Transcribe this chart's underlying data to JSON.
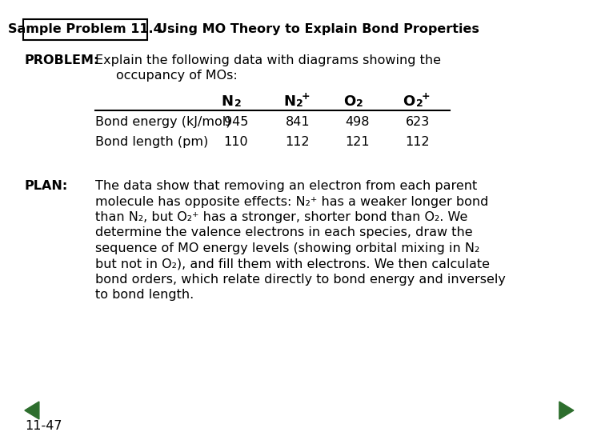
{
  "title_box": "Sample Problem 11.4",
  "title_right": "Using MO Theory to Explain Bond Properties",
  "problem_label": "PROBLEM:",
  "problem_text_line1": "Explain the following data with diagrams showing the",
  "problem_text_line2": "occupancy of MOs:",
  "table_row1_label": "Bond energy (kJ/mol)",
  "table_row1_values": [
    "945",
    "841",
    "498",
    "623"
  ],
  "table_row2_label": "Bond length (pm)",
  "table_row2_values": [
    "110",
    "112",
    "121",
    "112"
  ],
  "plan_label": "PLAN:",
  "plan_lines": [
    "The data show that removing an electron from each parent",
    "molecule has opposite effects: N₂⁺ has a weaker longer bond",
    "than N₂, but O₂⁺ has a stronger, shorter bond than O₂. We",
    "determine the valence electrons in each species, draw the",
    "sequence of MO energy levels (showing orbital mixing in N₂",
    "but not in O₂), and fill them with electrons. We then calculate",
    "bond orders, which relate directly to bond energy and inversely",
    "to bond length."
  ],
  "page_number": "11-47",
  "bg_color": "#ffffff",
  "text_color": "#000000",
  "box_color": "#000000",
  "arrow_color": "#2d6e2d",
  "font_size": 11.5,
  "font_family": "DejaVu Sans"
}
